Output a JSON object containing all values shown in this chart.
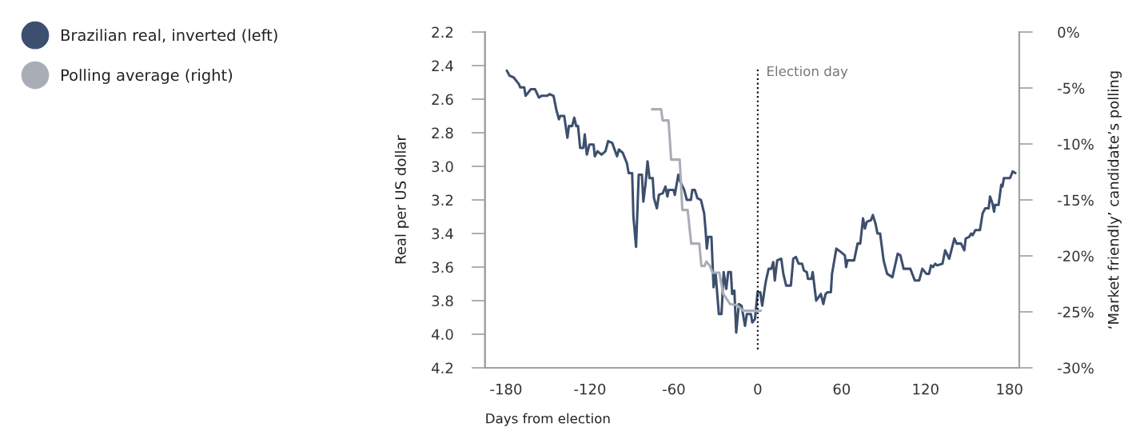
{
  "chart_data": {
    "type": "line",
    "xlabel": "Days from election",
    "ylabel": "Real per US dollar",
    "y2label": "‘Market friendly’ candidate’s polling",
    "xlim": [
      -195,
      187
    ],
    "xticks": [
      -180,
      -120,
      -60,
      0,
      60,
      120,
      180
    ],
    "ylim": [
      4.2,
      2.2
    ],
    "yticks": [
      {
        "value": 2.2,
        "label": "2.2"
      },
      {
        "value": 2.4,
        "label": "2.4"
      },
      {
        "value": 2.6,
        "label": "2.6"
      },
      {
        "value": 2.8,
        "label": "2.8"
      },
      {
        "value": 3.0,
        "label": "3.0"
      },
      {
        "value": 3.2,
        "label": "3.2"
      },
      {
        "value": 3.4,
        "label": "3.4"
      },
      {
        "value": 3.6,
        "label": "3.6"
      },
      {
        "value": 3.8,
        "label": "3.8"
      },
      {
        "value": 4.0,
        "label": "4.0"
      },
      {
        "value": 4.2,
        "label": "4.2"
      }
    ],
    "y2lim": [
      -30,
      0
    ],
    "y2ticks": [
      {
        "value": 0,
        "label": "0%"
      },
      {
        "value": -5,
        "label": "-5%"
      },
      {
        "value": -10,
        "label": "-10%"
      },
      {
        "value": -15,
        "label": "-15%"
      },
      {
        "value": -20,
        "label": "-20%"
      },
      {
        "value": -25,
        "label": "-25%"
      },
      {
        "value": -30,
        "label": "-30%"
      }
    ],
    "grid": false,
    "legend": "top left",
    "line_style": "solid",
    "ref_lines": [
      {
        "axis": "x",
        "value": 0,
        "label": "Election day",
        "color": "#000000",
        "line_style": "dotted"
      }
    ],
    "series": [
      {
        "name": "Polling average (right)",
        "color": "#a9adb5",
        "axis": "y2",
        "x": [
          -75.6,
          -69.1,
          -68,
          -63.8,
          -61.9,
          -55.8,
          -53.9,
          -50.1,
          -47.6,
          -41.8,
          -40.3,
          -38.0,
          -36.7,
          -34.2,
          -32.3,
          -27.5,
          -24.6,
          -19.8,
          -15.0,
          -12.2,
          -10.3,
          2.2
        ],
        "values": [
          -6.9,
          -6.9,
          -7.9,
          -7.9,
          -11.4,
          -11.4,
          -15.9,
          -15.9,
          -18.9,
          -18.9,
          -20.9,
          -20.9,
          -20.5,
          -20.9,
          -21.5,
          -21.5,
          -23.4,
          -24.3,
          -24.4,
          -24.7,
          -24.9,
          -24.9
        ]
      },
      {
        "name": "Brazilian real, inverted (left)",
        "color": "#3d4f6e",
        "x": [
          -179.4,
          -177.5,
          -174.6,
          -170.8,
          -169.8,
          -167,
          -166,
          -162.2,
          -159.3,
          -156.5,
          -154.6,
          -150.7,
          -148.8,
          -146,
          -144.1,
          -142.2,
          -141.2,
          -138.4,
          -136.1,
          -135,
          -132.7,
          -131.2,
          -129.8,
          -128.5,
          -127,
          -124.7,
          -123.7,
          -122.2,
          -120.3,
          -117.4,
          -116.5,
          -114.6,
          -111.7,
          -108.9,
          -107,
          -104.1,
          -100.6,
          -99.3,
          -96.5,
          -93.6,
          -92.3,
          -89.8,
          -88.9,
          -87,
          -85.1,
          -82.8,
          -81.8,
          -80.3,
          -78.8,
          -77.4,
          -75.1,
          -74.2,
          -72.1,
          -70.7,
          -67.9,
          -66,
          -64.6,
          -63.7,
          -60.2,
          -59.3,
          -56.8,
          -55.5,
          -52.6,
          -50.7,
          -47.8,
          -46.8,
          -45,
          -43.1,
          -40.6,
          -38.3,
          -37.3,
          -36.4,
          -35.4,
          -33.1,
          -31.6,
          -30.1,
          -27.8,
          -25.9,
          -24.4,
          -22.5,
          -21.1,
          -19.2,
          -18.3,
          -16.7,
          -15.4,
          -13.5,
          -11.6,
          -9.1,
          -7.8,
          -4.9,
          -3.9,
          -2,
          -0.1,
          1.8,
          3.2,
          5.1,
          5.9,
          7.8,
          9.7,
          11.1,
          12.2,
          13.9,
          16.8,
          18.3,
          20.3,
          23.7,
          25.4,
          27.3,
          29.2,
          31.7,
          33.0,
          35.1,
          35.9,
          38.4,
          39.3,
          41.8,
          45.1,
          46.9,
          48.5,
          49.9,
          52.3,
          53.1,
          56.2,
          59.4,
          62.3,
          63.2,
          64.2,
          68.9,
          71.4,
          73.3,
          75.3,
          76.6,
          78.0,
          81.0,
          82.3,
          84.2,
          85.6,
          87.5,
          90.0,
          92.5,
          96.3,
          100.1,
          102.0,
          104.3,
          109.1,
          112.3,
          115.4,
          117.7,
          120.6,
          122.5,
          123.9,
          125.4,
          126.9,
          128.3,
          132.1,
          134.0,
          136.9,
          140.6,
          142.2,
          145.4,
          147.7,
          148.7,
          151.2,
          152.6,
          153.7,
          155.6,
          158.9,
          160.8,
          162.7,
          165.1,
          166.1,
          167.8,
          169.0,
          169.7,
          172.2,
          174.1,
          175.0,
          176.0,
          180.4,
          182.3,
          184.2
        ],
        "values": [
          2.43,
          2.46,
          2.47,
          2.51,
          2.53,
          2.53,
          2.58,
          2.54,
          2.54,
          2.59,
          2.58,
          2.58,
          2.57,
          2.58,
          2.66,
          2.72,
          2.7,
          2.7,
          2.83,
          2.76,
          2.76,
          2.71,
          2.76,
          2.76,
          2.89,
          2.89,
          2.81,
          2.93,
          2.87,
          2.87,
          2.94,
          2.91,
          2.93,
          2.91,
          2.85,
          2.86,
          2.94,
          2.9,
          2.92,
          2.98,
          3.04,
          3.04,
          3.3,
          3.48,
          3.05,
          3.05,
          3.21,
          3.11,
          2.97,
          3.07,
          3.07,
          3.19,
          3.25,
          3.17,
          3.16,
          3.12,
          3.18,
          3.14,
          3.14,
          3.17,
          3.05,
          3.09,
          3.14,
          3.2,
          3.2,
          3.14,
          3.14,
          3.19,
          3.2,
          3.28,
          3.38,
          3.49,
          3.42,
          3.42,
          3.72,
          3.64,
          3.88,
          3.88,
          3.63,
          3.73,
          3.63,
          3.63,
          3.76,
          3.74,
          3.99,
          3.82,
          3.83,
          3.95,
          3.88,
          3.88,
          3.93,
          3.91,
          3.75,
          3.75,
          3.83,
          3.72,
          3.68,
          3.61,
          3.61,
          3.57,
          3.68,
          3.56,
          3.55,
          3.64,
          3.71,
          3.71,
          3.55,
          3.54,
          3.58,
          3.58,
          3.62,
          3.63,
          3.67,
          3.67,
          3.63,
          3.8,
          3.76,
          3.82,
          3.76,
          3.75,
          3.75,
          3.64,
          3.49,
          3.51,
          3.53,
          3.6,
          3.56,
          3.56,
          3.46,
          3.46,
          3.31,
          3.37,
          3.33,
          3.32,
          3.29,
          3.34,
          3.4,
          3.4,
          3.56,
          3.64,
          3.66,
          3.52,
          3.53,
          3.61,
          3.61,
          3.68,
          3.68,
          3.61,
          3.64,
          3.64,
          3.59,
          3.6,
          3.58,
          3.59,
          3.58,
          3.5,
          3.55,
          3.43,
          3.46,
          3.46,
          3.5,
          3.43,
          3.42,
          3.4,
          3.41,
          3.38,
          3.38,
          3.28,
          3.25,
          3.25,
          3.18,
          3.22,
          3.27,
          3.23,
          3.23,
          3.11,
          3.12,
          3.07,
          3.07,
          3.03,
          3.04
        ]
      }
    ]
  }
}
